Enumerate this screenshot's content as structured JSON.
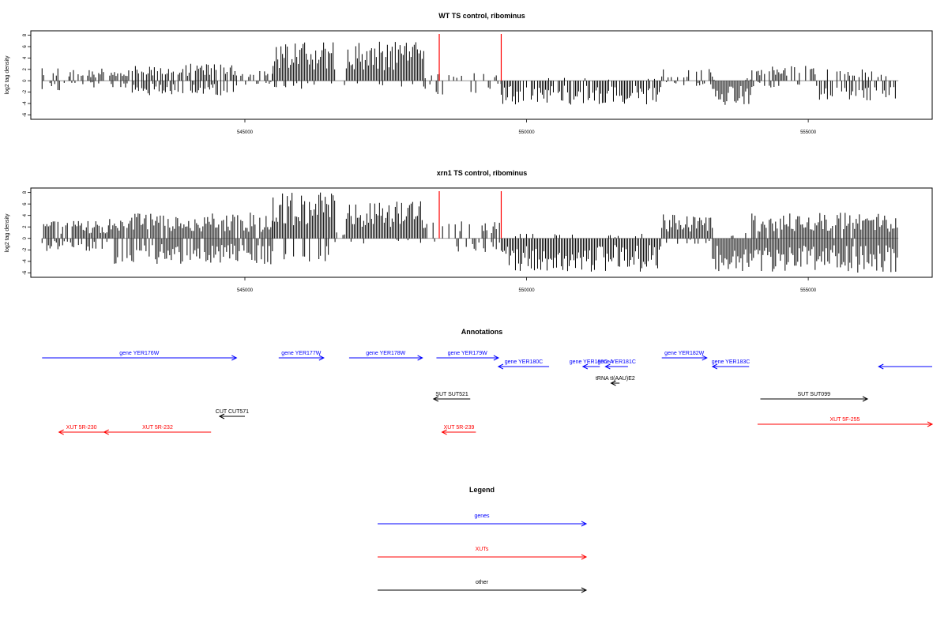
{
  "chart_data": [
    {
      "type": "bar",
      "title": "WT TS control, ribominus",
      "xlabel": "",
      "ylabel": "log2 tag density",
      "xlim": [
        541200,
        557200
      ],
      "ylim": [
        -6.5,
        8.5
      ],
      "xticks": [
        {
          "value": 545000,
          "label": "545000"
        },
        {
          "value": 550000,
          "label": "550000"
        },
        {
          "value": 555000,
          "label": "555000"
        }
      ],
      "yticks": [
        8,
        6,
        4,
        2,
        0,
        -2,
        -4,
        -6
      ],
      "markers": [
        548450,
        549550
      ],
      "marker_color": "#ff0000",
      "segments": [
        {
          "start": 541400,
          "end": 541900,
          "pos_max": 2.2,
          "neg_max": 1.8,
          "pos_density": 0.5,
          "neg_density": 0.5
        },
        {
          "start": 541900,
          "end": 543000,
          "pos_max": 2.2,
          "neg_max": 1.2,
          "pos_density": 0.6,
          "neg_density": 0.35
        },
        {
          "start": 543000,
          "end": 544900,
          "pos_max": 3.0,
          "neg_max": 2.6,
          "pos_density": 0.7,
          "neg_density": 0.55
        },
        {
          "start": 544900,
          "end": 545500,
          "pos_max": 1.8,
          "neg_max": 0.8,
          "pos_density": 0.5,
          "neg_density": 0.2
        },
        {
          "start": 545500,
          "end": 546600,
          "pos_max": 6.8,
          "neg_max": 1.8,
          "pos_density": 1.0,
          "neg_density": 0.2
        },
        {
          "start": 546600,
          "end": 546800,
          "pos_max": 1.0,
          "neg_max": 1.0,
          "pos_density": 0.2,
          "neg_density": 0.2
        },
        {
          "start": 546800,
          "end": 548200,
          "pos_max": 7.0,
          "neg_max": 1.2,
          "pos_density": 1.0,
          "neg_density": 0.15
        },
        {
          "start": 548200,
          "end": 549550,
          "pos_max": 1.5,
          "neg_max": 2.5,
          "pos_density": 0.2,
          "neg_density": 0.2
        },
        {
          "start": 549550,
          "end": 552400,
          "pos_max": 0.5,
          "neg_max": 4.2,
          "pos_density": 0.05,
          "neg_density": 0.8
        },
        {
          "start": 552400,
          "end": 553300,
          "pos_max": 2.2,
          "neg_max": 1.0,
          "pos_density": 0.5,
          "neg_density": 0.2
        },
        {
          "start": 553300,
          "end": 554000,
          "pos_max": 0.5,
          "neg_max": 4.4,
          "pos_density": 0.1,
          "neg_density": 1.0
        },
        {
          "start": 554000,
          "end": 555200,
          "pos_max": 2.6,
          "neg_max": 1.2,
          "pos_density": 0.6,
          "neg_density": 0.3
        },
        {
          "start": 555200,
          "end": 556600,
          "pos_max": 2.2,
          "neg_max": 3.6,
          "pos_density": 0.5,
          "neg_density": 0.6
        }
      ]
    },
    {
      "type": "bar",
      "title": "xrn1 TS control, ribominus",
      "xlabel": "",
      "ylabel": "log2 tag density",
      "xlim": [
        541200,
        557200
      ],
      "ylim": [
        -6.5,
        8.5
      ],
      "xticks": [
        {
          "value": 545000,
          "label": "545000"
        },
        {
          "value": 550000,
          "label": "550000"
        },
        {
          "value": 555000,
          "label": "555000"
        }
      ],
      "yticks": [
        8,
        6,
        4,
        2,
        0,
        -2,
        -4,
        -6
      ],
      "markers": [
        548450,
        549550
      ],
      "marker_color": "#ff0000",
      "segments": [
        {
          "start": 541400,
          "end": 542600,
          "pos_max": 3.2,
          "neg_max": 2.2,
          "pos_density": 0.9,
          "neg_density": 0.6
        },
        {
          "start": 542600,
          "end": 545500,
          "pos_max": 4.5,
          "neg_max": 4.5,
          "pos_density": 0.9,
          "neg_density": 0.75
        },
        {
          "start": 545500,
          "end": 546600,
          "pos_max": 8.0,
          "neg_max": 4.8,
          "pos_density": 1.0,
          "neg_density": 0.3
        },
        {
          "start": 546600,
          "end": 546800,
          "pos_max": 1.5,
          "neg_max": 1.0,
          "pos_density": 0.2,
          "neg_density": 0.2
        },
        {
          "start": 546800,
          "end": 548200,
          "pos_max": 6.8,
          "neg_max": 1.0,
          "pos_density": 1.0,
          "neg_density": 0.1
        },
        {
          "start": 548200,
          "end": 549550,
          "pos_max": 3.2,
          "neg_max": 2.5,
          "pos_density": 0.4,
          "neg_density": 0.35
        },
        {
          "start": 549550,
          "end": 552400,
          "pos_max": 0.8,
          "neg_max": 5.8,
          "pos_density": 0.1,
          "neg_density": 1.0
        },
        {
          "start": 552400,
          "end": 553300,
          "pos_max": 4.2,
          "neg_max": 1.0,
          "pos_density": 1.0,
          "neg_density": 0.2
        },
        {
          "start": 553300,
          "end": 554000,
          "pos_max": 1.0,
          "neg_max": 5.8,
          "pos_density": 0.2,
          "neg_density": 1.0
        },
        {
          "start": 554000,
          "end": 556600,
          "pos_max": 4.5,
          "neg_max": 6.0,
          "pos_density": 0.95,
          "neg_density": 0.95
        }
      ]
    }
  ],
  "annotations": {
    "title": "Annotations",
    "features": [
      {
        "label": "gene YER176W",
        "start": 541400,
        "end": 544850,
        "dir": "right",
        "color": "#0000ff",
        "row": 0
      },
      {
        "label": "gene YER177W",
        "start": 545600,
        "end": 546400,
        "dir": "right",
        "color": "#0000ff",
        "row": 0
      },
      {
        "label": "gene YER178W",
        "start": 546850,
        "end": 548150,
        "dir": "right",
        "color": "#0000ff",
        "row": 0
      },
      {
        "label": "gene YER179W",
        "start": 548400,
        "end": 549500,
        "dir": "right",
        "color": "#0000ff",
        "row": 0
      },
      {
        "label": "gene YER180C",
        "start": 549500,
        "end": 550400,
        "dir": "left",
        "color": "#0000ff",
        "row": 1
      },
      {
        "label": "gene YER180C-A",
        "start": 551000,
        "end": 551300,
        "dir": "left",
        "color": "#0000ff",
        "row": 1
      },
      {
        "label": "gene YER181C",
        "start": 551400,
        "end": 551800,
        "dir": "left",
        "color": "#0000ff",
        "row": 1
      },
      {
        "label": "gene YER182W",
        "start": 552400,
        "end": 553200,
        "dir": "right",
        "color": "#0000ff",
        "row": 0
      },
      {
        "label": "gene YER183C",
        "start": 553300,
        "end": 553950,
        "dir": "left",
        "color": "#0000ff",
        "row": 1
      },
      {
        "label": "",
        "start": 556250,
        "end": 557200,
        "dir": "left",
        "color": "#0000ff",
        "row": 1
      },
      {
        "label": "tRNA tI(AAU)E2",
        "start": 551500,
        "end": 551650,
        "dir": "left",
        "color": "#000000",
        "row": 2
      },
      {
        "label": "SUT SUT521",
        "start": 548350,
        "end": 549000,
        "dir": "left",
        "color": "#000000",
        "row": 3
      },
      {
        "label": "SUT SUT099",
        "start": 554150,
        "end": 556050,
        "dir": "right",
        "color": "#000000",
        "row": 3
      },
      {
        "label": "CUT CUT571",
        "start": 544550,
        "end": 545000,
        "dir": "left",
        "color": "#000000",
        "row": 4
      },
      {
        "label": "XUT 5R-230",
        "start": 541700,
        "end": 542500,
        "dir": "left",
        "color": "#ff0000",
        "row": 5
      },
      {
        "label": "XUT 5R-232",
        "start": 542500,
        "end": 544400,
        "dir": "left",
        "color": "#ff0000",
        "row": 5
      },
      {
        "label": "XUT 5R-239",
        "start": 548500,
        "end": 549100,
        "dir": "left",
        "color": "#ff0000",
        "row": 5
      },
      {
        "label": "XUT 5F-255",
        "start": 554100,
        "end": 557200,
        "dir": "right",
        "color": "#ff0000",
        "row": 4.5
      }
    ]
  },
  "legend": {
    "title": "Legend",
    "items": [
      {
        "label": "genes",
        "color": "#0000ff"
      },
      {
        "label": "XUTs",
        "color": "#ff0000"
      },
      {
        "label": "other",
        "color": "#000000"
      }
    ]
  }
}
